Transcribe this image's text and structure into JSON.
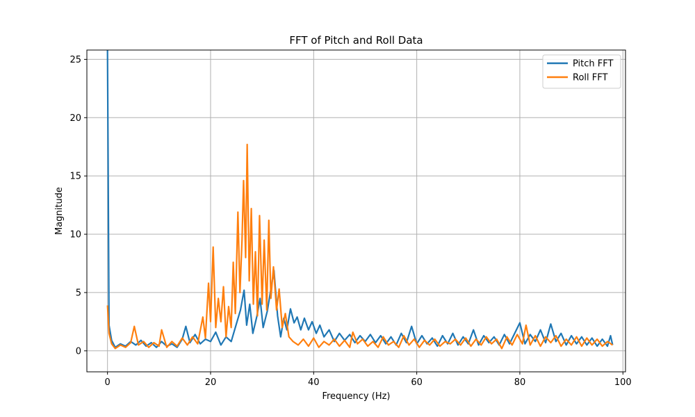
{
  "chart_data": {
    "type": "line",
    "title": "FFT of Pitch and Roll Data",
    "xlabel": "Frequency (Hz)",
    "ylabel": "Magnitude",
    "xlim": [
      -4,
      100.5
    ],
    "ylim": [
      -1.8,
      25.8
    ],
    "xticks": [
      0,
      20,
      40,
      60,
      80,
      100
    ],
    "yticks": [
      0,
      5,
      10,
      15,
      20,
      25
    ],
    "grid": true,
    "legend_position": "top-right",
    "series": [
      {
        "name": "Pitch FFT",
        "color": "#1f77b4",
        "points": [
          [
            0,
            25.8
          ],
          [
            0.3,
            2.2
          ],
          [
            0.8,
            0.9
          ],
          [
            1.5,
            0.3
          ],
          [
            2.5,
            0.6
          ],
          [
            3.5,
            0.4
          ],
          [
            4.5,
            0.8
          ],
          [
            5.5,
            0.5
          ],
          [
            6.5,
            0.9
          ],
          [
            7.5,
            0.4
          ],
          [
            8.5,
            0.7
          ],
          [
            9.5,
            0.3
          ],
          [
            10.5,
            0.8
          ],
          [
            11.5,
            0.4
          ],
          [
            12.5,
            0.6
          ],
          [
            13.5,
            0.3
          ],
          [
            14.5,
            1.0
          ],
          [
            15.2,
            2.1
          ],
          [
            16,
            0.7
          ],
          [
            17,
            1.4
          ],
          [
            18,
            0.6
          ],
          [
            19,
            1.0
          ],
          [
            20,
            0.8
          ],
          [
            21,
            1.6
          ],
          [
            22,
            0.5
          ],
          [
            23,
            1.2
          ],
          [
            24,
            0.8
          ],
          [
            25,
            2.3
          ],
          [
            25.8,
            3.5
          ],
          [
            26.5,
            5.2
          ],
          [
            27,
            2.2
          ],
          [
            27.6,
            4.0
          ],
          [
            28.2,
            1.5
          ],
          [
            29,
            3.0
          ],
          [
            29.6,
            4.5
          ],
          [
            30.2,
            2.0
          ],
          [
            31,
            3.4
          ],
          [
            31.7,
            5.3
          ],
          [
            32.3,
            6.9
          ],
          [
            33,
            3.0
          ],
          [
            33.6,
            1.2
          ],
          [
            34.2,
            2.8
          ],
          [
            34.8,
            1.8
          ],
          [
            35.5,
            3.6
          ],
          [
            36.2,
            2.4
          ],
          [
            36.8,
            2.9
          ],
          [
            37.5,
            1.8
          ],
          [
            38.2,
            2.8
          ],
          [
            39,
            1.8
          ],
          [
            39.7,
            2.5
          ],
          [
            40.5,
            1.5
          ],
          [
            41.2,
            2.2
          ],
          [
            42,
            1.2
          ],
          [
            43,
            1.8
          ],
          [
            44,
            0.8
          ],
          [
            45,
            1.5
          ],
          [
            46,
            0.9
          ],
          [
            47,
            1.4
          ],
          [
            48,
            0.7
          ],
          [
            49,
            1.3
          ],
          [
            50,
            0.8
          ],
          [
            51,
            1.4
          ],
          [
            52,
            0.7
          ],
          [
            53,
            1.3
          ],
          [
            54,
            0.6
          ],
          [
            55,
            1.2
          ],
          [
            56,
            0.5
          ],
          [
            57,
            1.5
          ],
          [
            58,
            0.7
          ],
          [
            59,
            2.1
          ],
          [
            60,
            0.6
          ],
          [
            61,
            1.3
          ],
          [
            62,
            0.6
          ],
          [
            63,
            1.1
          ],
          [
            64,
            0.4
          ],
          [
            65,
            1.3
          ],
          [
            66,
            0.6
          ],
          [
            67,
            1.5
          ],
          [
            68,
            0.5
          ],
          [
            69,
            1.2
          ],
          [
            70,
            0.6
          ],
          [
            71,
            1.8
          ],
          [
            72,
            0.5
          ],
          [
            73,
            1.3
          ],
          [
            74,
            0.7
          ],
          [
            75,
            1.2
          ],
          [
            76,
            0.5
          ],
          [
            77,
            1.4
          ],
          [
            78,
            0.6
          ],
          [
            79,
            1.5
          ],
          [
            80,
            2.4
          ],
          [
            81,
            0.6
          ],
          [
            82,
            1.4
          ],
          [
            83,
            0.8
          ],
          [
            84,
            1.8
          ],
          [
            85,
            0.7
          ],
          [
            86,
            2.3
          ],
          [
            87,
            0.8
          ],
          [
            88,
            1.5
          ],
          [
            89,
            0.5
          ],
          [
            90,
            1.3
          ],
          [
            91,
            0.6
          ],
          [
            92,
            1.2
          ],
          [
            93,
            0.5
          ],
          [
            94,
            1.1
          ],
          [
            95,
            0.4
          ],
          [
            96,
            1.0
          ],
          [
            97,
            0.4
          ],
          [
            97.6,
            1.3
          ],
          [
            98,
            0.5
          ]
        ]
      },
      {
        "name": "Roll FFT",
        "color": "#ff7f0e",
        "points": [
          [
            0,
            3.9
          ],
          [
            0.3,
            1.5
          ],
          [
            0.8,
            0.6
          ],
          [
            1.5,
            0.2
          ],
          [
            2.5,
            0.5
          ],
          [
            3.5,
            0.3
          ],
          [
            4.5,
            0.7
          ],
          [
            5.2,
            2.1
          ],
          [
            6,
            0.5
          ],
          [
            7,
            0.8
          ],
          [
            8,
            0.3
          ],
          [
            9,
            0.7
          ],
          [
            10,
            0.4
          ],
          [
            10.5,
            1.8
          ],
          [
            11.5,
            0.3
          ],
          [
            12.5,
            0.8
          ],
          [
            13.5,
            0.4
          ],
          [
            14.5,
            1.1
          ],
          [
            15.5,
            0.5
          ],
          [
            16.5,
            1.2
          ],
          [
            17.5,
            0.6
          ],
          [
            18.5,
            2.9
          ],
          [
            19,
            1.1
          ],
          [
            19.6,
            5.8
          ],
          [
            20,
            2.5
          ],
          [
            20.5,
            8.9
          ],
          [
            21,
            2.0
          ],
          [
            21.5,
            4.5
          ],
          [
            22,
            2.5
          ],
          [
            22.5,
            5.5
          ],
          [
            23,
            1.2
          ],
          [
            23.5,
            3.8
          ],
          [
            24,
            2.0
          ],
          [
            24.4,
            7.6
          ],
          [
            24.8,
            3.2
          ],
          [
            25.3,
            11.9
          ],
          [
            25.7,
            5.0
          ],
          [
            26.1,
            9.5
          ],
          [
            26.4,
            14.6
          ],
          [
            26.8,
            8.0
          ],
          [
            27.1,
            17.7
          ],
          [
            27.5,
            6.0
          ],
          [
            27.9,
            12.2
          ],
          [
            28.3,
            4.0
          ],
          [
            28.7,
            8.5
          ],
          [
            29.1,
            3.0
          ],
          [
            29.5,
            11.6
          ],
          [
            30,
            4.0
          ],
          [
            30.4,
            9.5
          ],
          [
            30.9,
            3.5
          ],
          [
            31.3,
            11.2
          ],
          [
            31.7,
            4.5
          ],
          [
            32.2,
            7.2
          ],
          [
            32.8,
            3.5
          ],
          [
            33.3,
            5.3
          ],
          [
            33.9,
            2.0
          ],
          [
            34.5,
            3.2
          ],
          [
            35.2,
            1.2
          ],
          [
            36,
            0.8
          ],
          [
            37,
            0.5
          ],
          [
            38,
            1.0
          ],
          [
            39,
            0.4
          ],
          [
            40,
            1.1
          ],
          [
            41,
            0.3
          ],
          [
            42,
            0.8
          ],
          [
            43,
            0.5
          ],
          [
            44,
            1.0
          ],
          [
            45,
            0.4
          ],
          [
            46,
            0.9
          ],
          [
            47,
            0.3
          ],
          [
            47.6,
            1.6
          ],
          [
            48.5,
            0.6
          ],
          [
            49.5,
            1.0
          ],
          [
            50.5,
            0.4
          ],
          [
            51.5,
            0.8
          ],
          [
            52.5,
            0.3
          ],
          [
            53.5,
            1.2
          ],
          [
            54.5,
            0.5
          ],
          [
            55.5,
            0.8
          ],
          [
            56.5,
            0.3
          ],
          [
            57.5,
            1.3
          ],
          [
            58.5,
            0.5
          ],
          [
            59.5,
            1.0
          ],
          [
            60.5,
            0.3
          ],
          [
            61.5,
            0.9
          ],
          [
            62.5,
            0.5
          ],
          [
            63.5,
            1.0
          ],
          [
            64.5,
            0.4
          ],
          [
            65.5,
            0.8
          ],
          [
            66.5,
            0.6
          ],
          [
            67.5,
            1.0
          ],
          [
            68.5,
            0.5
          ],
          [
            69.5,
            1.1
          ],
          [
            70.5,
            0.4
          ],
          [
            71.5,
            1.0
          ],
          [
            72.5,
            0.5
          ],
          [
            73.5,
            1.2
          ],
          [
            74.5,
            0.6
          ],
          [
            75.5,
            1.0
          ],
          [
            76.5,
            0.2
          ],
          [
            77.5,
            1.2
          ],
          [
            78.5,
            0.5
          ],
          [
            79.5,
            1.4
          ],
          [
            80.5,
            0.6
          ],
          [
            81.2,
            2.2
          ],
          [
            82,
            0.5
          ],
          [
            83,
            1.3
          ],
          [
            84,
            0.4
          ],
          [
            85,
            1.2
          ],
          [
            86,
            0.7
          ],
          [
            87,
            1.3
          ],
          [
            88,
            0.4
          ],
          [
            89,
            1.0
          ],
          [
            90,
            0.5
          ],
          [
            91,
            1.2
          ],
          [
            92,
            0.4
          ],
          [
            93,
            1.1
          ],
          [
            94,
            0.5
          ],
          [
            95,
            1.0
          ],
          [
            96,
            0.4
          ],
          [
            97,
            0.8
          ],
          [
            98,
            0.5
          ]
        ]
      }
    ]
  }
}
